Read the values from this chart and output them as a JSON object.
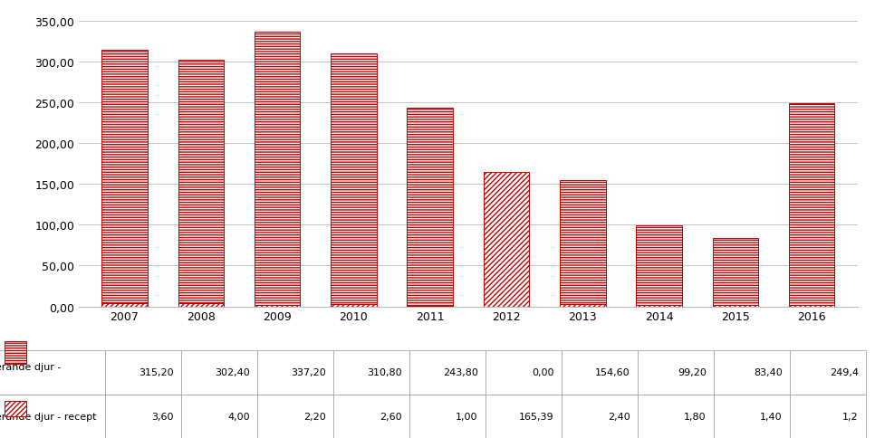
{
  "years": [
    "2007",
    "2008",
    "2009",
    "2010",
    "2011",
    "2012",
    "2013",
    "2014",
    "2015",
    "2016"
  ],
  "rekvisition": [
    315.2,
    302.4,
    337.2,
    310.8,
    243.8,
    0.0,
    154.6,
    99.2,
    83.4,
    249.4
  ],
  "recept": [
    3.6,
    4.0,
    2.2,
    2.6,
    1.0,
    165.39,
    2.4,
    1.8,
    1.4,
    1.2
  ],
  "rekvisition_label": "Livsmedelsproducerande djur -\nrekvisition",
  "recept_label": "Livsmedelsproducerande djur - recept",
  "ylim": [
    0,
    350
  ],
  "yticks": [
    0,
    50,
    100,
    150,
    200,
    250,
    300,
    350
  ],
  "rekvisition_facecolor": "#ffffff",
  "rekvisition_edgecolor": "#c00000",
  "recept_facecolor": "#ffffff",
  "recept_edgecolor": "#c00000",
  "background_color": "#ffffff",
  "table_row1_values": [
    "315,20",
    "302,40",
    "337,20",
    "310,80",
    "243,80",
    "0,00",
    "154,60",
    "99,20",
    "83,40",
    "249,4"
  ],
  "table_row2_values": [
    "3,60",
    "4,00",
    "2,20",
    "2,60",
    "1,00",
    "165,39",
    "2,40",
    "1,80",
    "1,40",
    "1,2"
  ],
  "bar_width": 0.6,
  "figsize": [
    9.66,
    4.85
  ],
  "dpi": 100
}
